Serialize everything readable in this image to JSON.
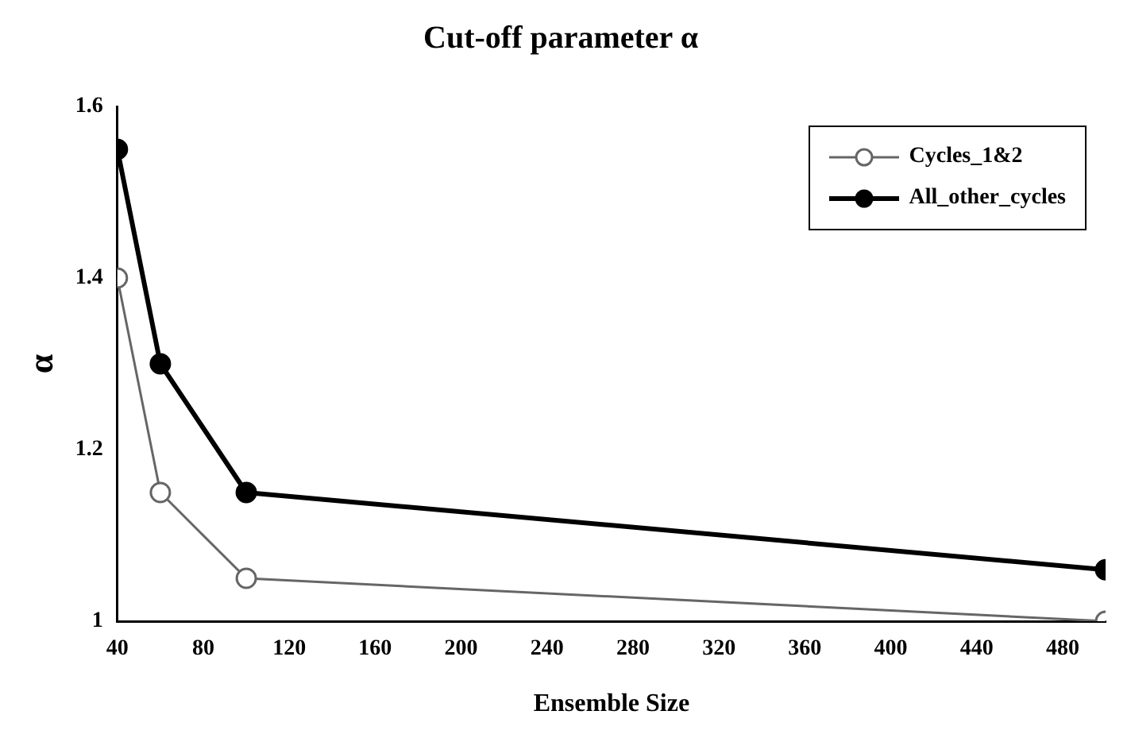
{
  "chart_data": {
    "type": "line",
    "title": "Cut-off parameter α",
    "xlabel": "Ensemble Size",
    "ylabel": "α",
    "x": [
      40,
      60,
      100,
      500
    ],
    "series": [
      {
        "name": "Cycles_1&2",
        "color": "#666666",
        "values": [
          1.4,
          1.15,
          1.05,
          1.0
        ]
      },
      {
        "name": "All_other_cycles",
        "color": "#000000",
        "values": [
          1.55,
          1.3,
          1.15,
          1.06
        ]
      }
    ],
    "xlim": [
      40,
      500
    ],
    "xticks": [
      40,
      80,
      120,
      160,
      200,
      240,
      280,
      320,
      360,
      400,
      440,
      480
    ],
    "ylim": [
      1,
      1.6
    ],
    "yticks": [
      1,
      1.2,
      1.4,
      1.6
    ],
    "grid": false,
    "legend": "top right",
    "marker": "circle",
    "line_style": "solid"
  }
}
